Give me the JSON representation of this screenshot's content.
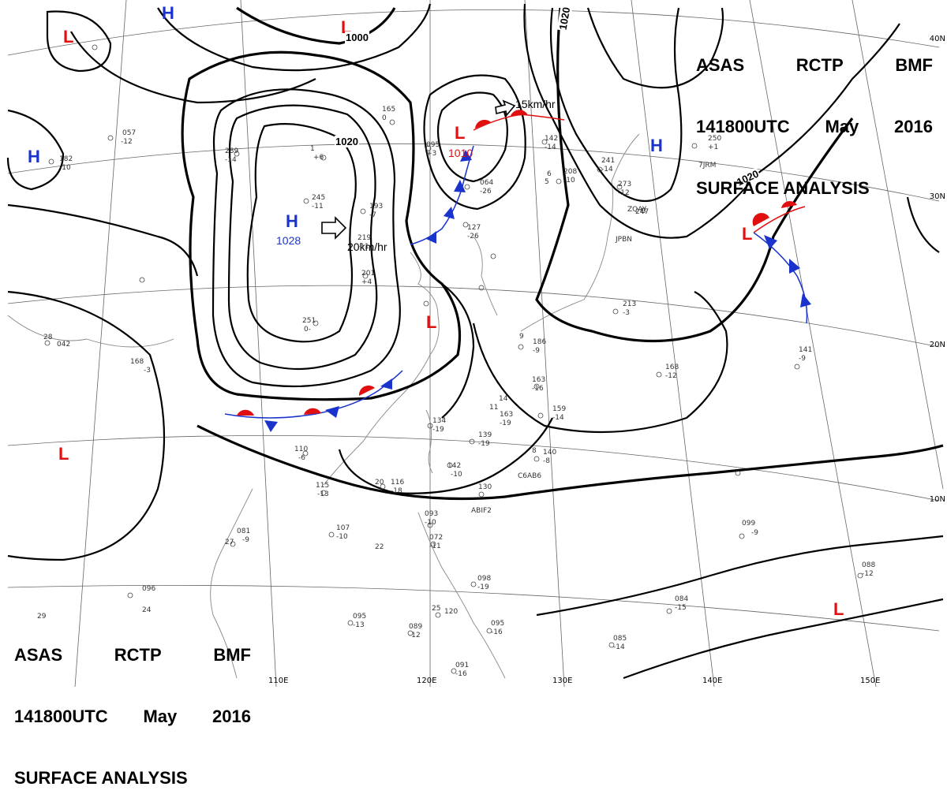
{
  "title": {
    "line1": [
      "ASAS",
      "RCTP",
      "BMF"
    ],
    "line2": [
      "141800UTC",
      "May",
      "2016"
    ],
    "line3": "SURFACE ANALYSIS"
  },
  "latitude_labels": [
    "40N",
    "30N",
    "20N",
    "10N"
  ],
  "longitude_labels": [
    "110E",
    "120E",
    "130E",
    "140E",
    "150E"
  ],
  "pressure_centers": [
    {
      "type": "H",
      "value": "1028"
    },
    {
      "type": "L",
      "value": "1010"
    },
    {
      "type": "H",
      "value": ""
    },
    {
      "type": "H",
      "value": ""
    },
    {
      "type": "H",
      "value": ""
    },
    {
      "type": "L",
      "value": ""
    },
    {
      "type": "L",
      "value": ""
    },
    {
      "type": "L",
      "value": ""
    },
    {
      "type": "L",
      "value": ""
    },
    {
      "type": "L",
      "value": ""
    },
    {
      "type": "L",
      "value": ""
    }
  ],
  "isobar_labels": [
    "1000",
    "1020",
    "1020",
    "1020"
  ],
  "motion_vectors": [
    {
      "speed": "20km/hr"
    },
    {
      "speed": "15km/hr"
    }
  ],
  "station_obs": [
    "245",
    "-11",
    "289",
    "-14",
    "251",
    "0-",
    "201",
    "+4",
    "219",
    "-11",
    "165",
    "0",
    "095",
    "+3",
    "127",
    "-26",
    "064",
    "-26",
    "142",
    "-14",
    "208",
    "-10",
    "241",
    "-14",
    "273",
    "-12",
    "247",
    "250",
    "+1",
    "7JRM",
    "ZQAY",
    "JPBN",
    "213",
    "-3",
    "168",
    "-12",
    "141",
    "-9",
    "163",
    "-16",
    "159",
    "-14",
    "140",
    "-8",
    "C6AB6",
    "134",
    "-19",
    "139",
    "-19",
    "142",
    "-10",
    "130",
    "ABIF2",
    "116",
    "-18",
    "115",
    "-13",
    "110",
    "-6",
    "107",
    "-10",
    "093",
    "-10",
    "072",
    "-11",
    "098",
    "-19",
    "095",
    "-13",
    "089",
    "-12",
    "120",
    "095",
    "-16",
    "091",
    "-16",
    "084",
    "-15",
    "085",
    "-14",
    "088",
    "-12",
    "099",
    "-9",
    "081",
    "-9",
    "096",
    "042",
    "168",
    "-3",
    "193",
    "-7",
    "186",
    "-9",
    "163",
    "-19",
    "057",
    "-12",
    "182",
    "-10",
    "1",
    "+6",
    "28",
    "29",
    "27",
    "25",
    "24",
    "22",
    "20",
    "14",
    "11",
    "9",
    "8",
    "6",
    "5"
  ],
  "colors": {
    "isobar": "#000000",
    "high": "#1a33cc",
    "low": "#e01010",
    "warm_front": "#e01010",
    "cold_front": "#1a33cc",
    "grid": "#555555",
    "coast": "#777777"
  }
}
